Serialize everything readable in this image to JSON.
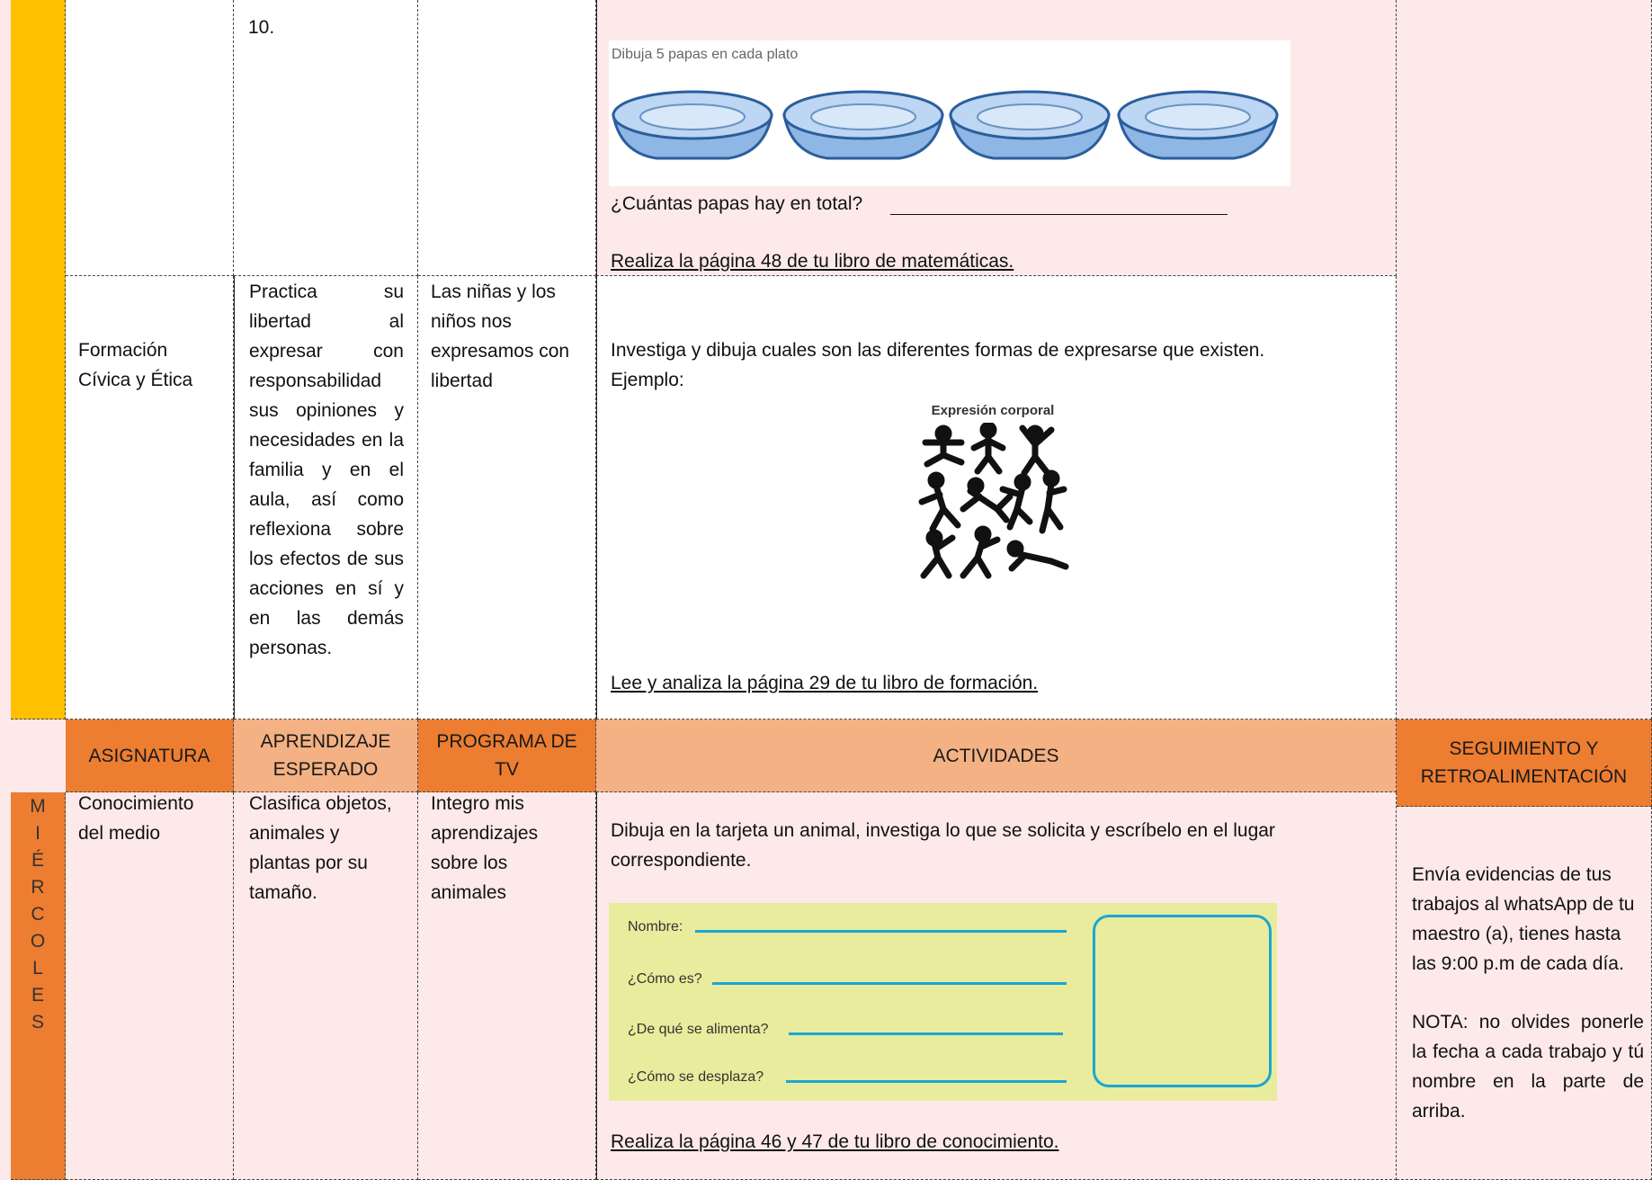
{
  "row_math": {
    "aprendizaje_end": "10.",
    "image_caption": "Dibuja 5 papas en cada plato",
    "question": "¿Cuántas papas hay en total?",
    "task": "Realiza la página 48 de tu libro de matemáticas."
  },
  "row_civica": {
    "asignatura": "Formación Cívica y Ética",
    "aprendizaje": "Practica su libertad al expresar con responsabilidad sus opiniones y necesidades en la familia y en el aula, así como reflexiona sobre los efectos de sus acciones en sí y en las demás personas.",
    "programa": "Las niñas y los niños nos expresamos con libertad",
    "instruction": "Investiga y dibuja cuales son las diferentes formas de expresarse que existen.",
    "example_label": "Ejemplo:",
    "image_caption": "Expresión corporal",
    "task": "Lee  y analiza la página 29 de tu libro de formación."
  },
  "header": {
    "asignatura": "ASIGNATURA",
    "aprendizaje": "APRENDIZAJE ESPERADO",
    "programa": "PROGRAMA DE TV",
    "actividades": "ACTIVIDADES",
    "seguimiento": "SEGUIMIENTO Y RETROALIMENTACIÓN"
  },
  "row_conocimiento": {
    "day": "MIÉRCOLES",
    "asignatura": "Conocimiento del medio",
    "aprendizaje": "Clasifica objetos, animales y plantas por su tamaño.",
    "programa": "Integro mis aprendizajes sobre los animales",
    "instruction": "Dibuja en la tarjeta un animal, investiga lo que se solicita y escríbelo en el lugar correspondiente.",
    "card_fields": [
      "Nombre:",
      "¿Cómo es?",
      "¿De qué se alimenta?",
      "¿Cómo se desplaza?"
    ],
    "task": "Realiza la página 46 y 47 de tu libro de conocimiento."
  },
  "seguimiento": [
    "Envía evidencias de tus trabajos al whatsApp de tu maestro (a), tienes hasta las 9:00 p.m de cada día.",
    "NOTA: no olvides ponerle la fecha a cada trabajo y tú nombre en la parte de arriba."
  ]
}
